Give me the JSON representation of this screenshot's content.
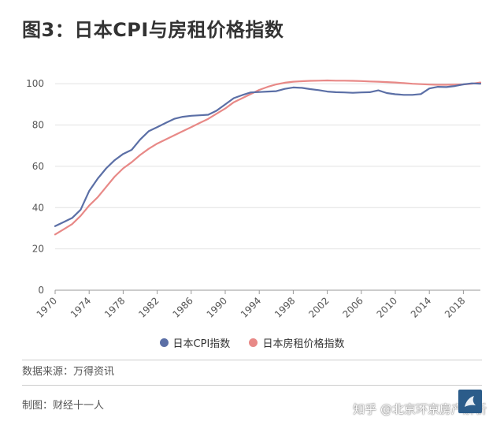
{
  "title": "图3：日本CPI与房租价格指数",
  "chart_data": {
    "type": "line",
    "x": [
      1970,
      1971,
      1972,
      1973,
      1974,
      1975,
      1976,
      1977,
      1978,
      1979,
      1980,
      1981,
      1982,
      1983,
      1984,
      1985,
      1986,
      1987,
      1988,
      1989,
      1990,
      1991,
      1992,
      1993,
      1994,
      1995,
      1996,
      1997,
      1998,
      1999,
      2000,
      2001,
      2002,
      2003,
      2004,
      2005,
      2006,
      2007,
      2008,
      2009,
      2010,
      2011,
      2012,
      2013,
      2014,
      2015,
      2016,
      2017,
      2018,
      2019,
      2020
    ],
    "x_ticks": [
      1970,
      1974,
      1978,
      1982,
      1986,
      1990,
      1994,
      1998,
      2002,
      2006,
      2010,
      2014,
      2018
    ],
    "y_ticks": [
      0,
      20,
      40,
      60,
      80,
      100
    ],
    "ylim": [
      0,
      110
    ],
    "xlim": [
      1970,
      2020
    ],
    "grid": "horizontal",
    "legend_position": "bottom",
    "series": [
      {
        "name": "日本CPI指数",
        "color": "#5b6fa6",
        "values": [
          31,
          33,
          35,
          39,
          48,
          54,
          59,
          63,
          66,
          68,
          73,
          77,
          79,
          81,
          83,
          84,
          84.5,
          84.7,
          85,
          87,
          90,
          93,
          94.5,
          95.8,
          96,
          96.2,
          96.4,
          97.5,
          98.2,
          98,
          97.4,
          96.9,
          96.2,
          95.9,
          95.8,
          95.6,
          95.8,
          95.9,
          96.8,
          95.5,
          94.9,
          94.6,
          94.6,
          95,
          97.7,
          98.5,
          98.4,
          98.9,
          99.7,
          100.2,
          100
        ]
      },
      {
        "name": "日本房租价格指数",
        "color": "#e88987",
        "values": [
          27,
          29.5,
          32,
          36,
          41,
          45,
          50,
          55,
          59,
          62,
          65.5,
          68.5,
          71,
          73,
          75,
          77,
          79,
          81,
          83,
          85.5,
          88,
          91,
          93,
          95,
          97,
          98.5,
          99.7,
          100.5,
          101,
          101.2,
          101.4,
          101.5,
          101.6,
          101.5,
          101.5,
          101.4,
          101.3,
          101.1,
          101,
          100.8,
          100.6,
          100.3,
          100,
          99.8,
          99.6,
          99.5,
          99.5,
          99.6,
          99.7,
          100,
          100.6
        ]
      }
    ]
  },
  "legend": {
    "cpi_label": "日本CPI指数",
    "rent_label": "日本房租价格指数"
  },
  "source": "数据来源：万得资讯",
  "maker": "制图：财经十一人",
  "watermark": "知乎 @北京环京房产解析"
}
